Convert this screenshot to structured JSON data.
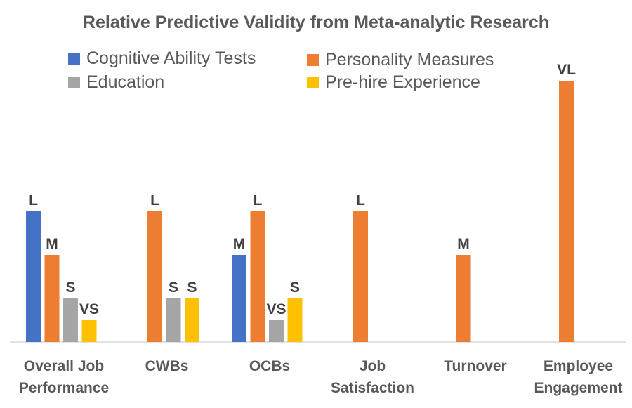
{
  "chart_data": {
    "type": "bar",
    "title": "Relative Predictive Validity from Meta-analytic Research",
    "xlabel": "",
    "ylabel": "",
    "categories": [
      [
        "Overall Job",
        "Performance"
      ],
      [
        "CWBs"
      ],
      [
        "OCBs"
      ],
      [
        "Job",
        "Satisfaction"
      ],
      [
        "Turnover"
      ],
      [
        "Employee",
        "Engagement"
      ]
    ],
    "level_scale": {
      "VS": 1,
      "S": 2,
      "M": 4,
      "L": 6,
      "VL": 12
    },
    "series": [
      {
        "name": "Cognitive Ability Tests",
        "color": "#4472C4",
        "values": [
          "L",
          null,
          "M",
          null,
          null,
          null
        ]
      },
      {
        "name": "Personality Measures",
        "color": "#ED7D31",
        "values": [
          "M",
          "L",
          "L",
          "L",
          "M",
          "VL"
        ]
      },
      {
        "name": "Education",
        "color": "#A5A5A5",
        "values": [
          "S",
          "S",
          "VS",
          null,
          null,
          null
        ]
      },
      {
        "name": "Pre-hire Experience",
        "color": "#FFC000",
        "values": [
          "VS",
          "S",
          "S",
          null,
          null,
          null
        ]
      }
    ],
    "grid": false,
    "legend_position": "top"
  }
}
